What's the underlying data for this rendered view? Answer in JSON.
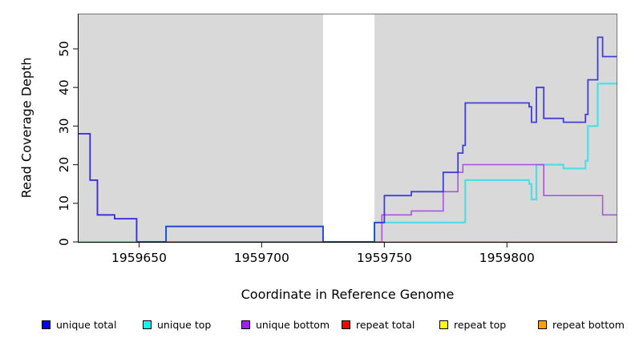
{
  "figure": {
    "xlabel": "Coordinate in Reference Genome",
    "ylabel": "Read Coverage Depth"
  },
  "legend": {
    "items": [
      {
        "label": "unique total",
        "color": "#0000ff"
      },
      {
        "label": "unique top",
        "color": "#00ffff"
      },
      {
        "label": "unique bottom",
        "color": "#a020f0"
      },
      {
        "label": "repeat total",
        "color": "#ff0000"
      },
      {
        "label": "repeat top",
        "color": "#ffff00"
      },
      {
        "label": "repeat bottom",
        "color": "#ffa000"
      }
    ]
  },
  "chart_data": {
    "type": "line",
    "subtype": "step-coverage",
    "title": "",
    "xlabel": "Coordinate in Reference Genome",
    "ylabel": "Read Coverage Depth",
    "xlim": [
      1959625,
      1959845
    ],
    "ylim": [
      0,
      59
    ],
    "x_ticks": [
      1959650,
      1959700,
      1959750,
      1959800
    ],
    "y_ticks": [
      0,
      10,
      20,
      30,
      40,
      50
    ],
    "grid": false,
    "legend_position": "bottom",
    "plot_bg": "#d9d9d9",
    "no_data_gap": {
      "start": 1959725,
      "end": 1959746
    },
    "series": [
      {
        "name": "unique total",
        "line_color": "#2424d8",
        "segments": [
          [
            1959625,
            1959630,
            28
          ],
          [
            1959630,
            1959633,
            16
          ],
          [
            1959633,
            1959640,
            7
          ],
          [
            1959640,
            1959649,
            6
          ],
          [
            1959649,
            1959661,
            0
          ],
          [
            1959661,
            1959725,
            4
          ],
          [
            1959725,
            1959746,
            0
          ],
          [
            1959746,
            1959750,
            5
          ],
          [
            1959750,
            1959761,
            12
          ],
          [
            1959761,
            1959774,
            13
          ],
          [
            1959774,
            1959780,
            18
          ],
          [
            1959780,
            1959782,
            23
          ],
          [
            1959782,
            1959783,
            25
          ],
          [
            1959783,
            1959809,
            36
          ],
          [
            1959809,
            1959810,
            35
          ],
          [
            1959810,
            1959812,
            31
          ],
          [
            1959812,
            1959815,
            40
          ],
          [
            1959815,
            1959823,
            32
          ],
          [
            1959823,
            1959832,
            31
          ],
          [
            1959832,
            1959833,
            33
          ],
          [
            1959833,
            1959837,
            42
          ],
          [
            1959837,
            1959839,
            53
          ],
          [
            1959839,
            1959845,
            48
          ]
        ]
      },
      {
        "name": "unique top",
        "line_color": "#4fdde6",
        "segments": [
          [
            1959625,
            1959661,
            0
          ],
          [
            1959661,
            1959725,
            4
          ],
          [
            1959725,
            1959746,
            0
          ],
          [
            1959746,
            1959783,
            5
          ],
          [
            1959783,
            1959809,
            16
          ],
          [
            1959809,
            1959810,
            15
          ],
          [
            1959810,
            1959812,
            11
          ],
          [
            1959812,
            1959823,
            20
          ],
          [
            1959823,
            1959832,
            19
          ],
          [
            1959832,
            1959833,
            21
          ],
          [
            1959833,
            1959837,
            30
          ],
          [
            1959837,
            1959845,
            41
          ]
        ]
      },
      {
        "name": "unique bottom",
        "line_color": "#aa55e0",
        "segments": [
          [
            1959625,
            1959630,
            28
          ],
          [
            1959630,
            1959633,
            16
          ],
          [
            1959633,
            1959640,
            7
          ],
          [
            1959640,
            1959649,
            6
          ],
          [
            1959649,
            1959749,
            0
          ],
          [
            1959749,
            1959761,
            7
          ],
          [
            1959761,
            1959774,
            8
          ],
          [
            1959774,
            1959780,
            13
          ],
          [
            1959780,
            1959782,
            18
          ],
          [
            1959782,
            1959815,
            20
          ],
          [
            1959815,
            1959839,
            12
          ],
          [
            1959839,
            1959845,
            7
          ]
        ]
      },
      {
        "name": "repeat total",
        "line_color": "#d6476c",
        "segments": [
          [
            1959650,
            1959750,
            0
          ]
        ]
      },
      {
        "name": "repeat top",
        "line_color": "#88c788",
        "segments": [
          [
            1959625,
            1959650,
            0
          ]
        ]
      },
      {
        "name": "repeat bottom",
        "line_color": "#ff8c1a",
        "segments": [
          [
            1959750,
            1959845,
            0
          ]
        ]
      }
    ],
    "baseline_segments": [
      {
        "from": 1959625,
        "to": 1959650,
        "color": "#88c788"
      },
      {
        "from": 1959650,
        "to": 1959750,
        "color": "#d6476c"
      },
      {
        "from": 1959750,
        "to": 1959845,
        "color": "#ff8c1a"
      }
    ]
  }
}
